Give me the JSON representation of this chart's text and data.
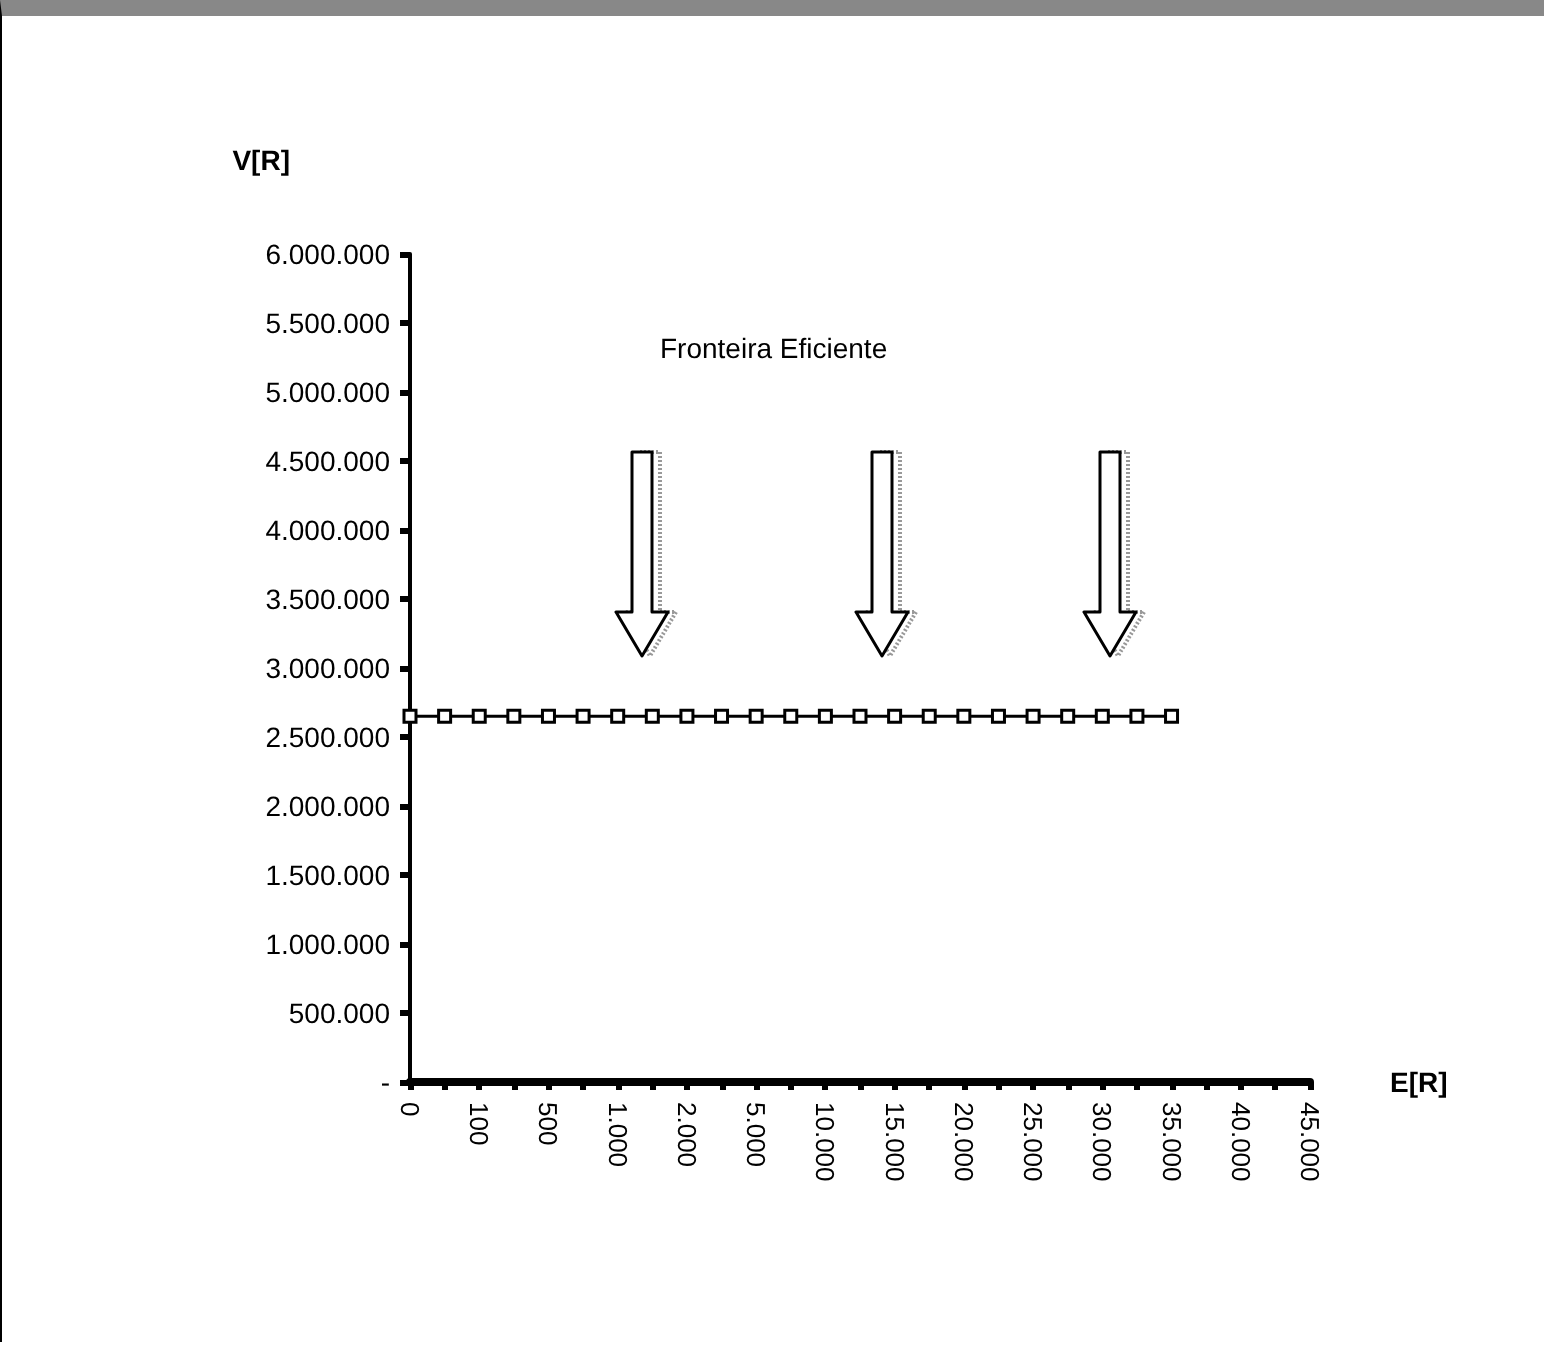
{
  "chart_data": {
    "type": "line",
    "xlabel": "E[R]",
    "ylabel": "V[R]",
    "annotations": [
      "Fronteira Eficiente"
    ],
    "categories": [
      "0",
      null,
      "100",
      null,
      "500",
      null,
      "1.000",
      null,
      "2.000",
      null,
      "5.000",
      null,
      "10.000",
      null,
      "15.000",
      null,
      "20.000",
      null,
      "25.000",
      null,
      "30.000",
      null,
      "35.000",
      null,
      "40.000",
      null,
      "45.000"
    ],
    "series": [
      {
        "color": "#000000",
        "values": [
          2650000,
          2650000,
          2650000,
          2650000,
          2650000,
          2650000,
          2650000,
          2650000,
          2650000,
          2650000,
          2650000,
          2650000,
          2650000,
          2650000,
          2650000,
          2650000,
          2650000,
          2650000,
          2650000,
          2650000,
          2650000,
          2650000,
          2650000,
          null,
          null,
          null,
          null
        ]
      }
    ],
    "ylim": [
      0,
      6000000
    ],
    "yticks": [
      {
        "value": 0,
        "label": "-"
      },
      {
        "value": 500000,
        "label": "500.000"
      },
      {
        "value": 1000000,
        "label": "1.000.000"
      },
      {
        "value": 1500000,
        "label": "1.500.000"
      },
      {
        "value": 2000000,
        "label": "2.000.000"
      },
      {
        "value": 2500000,
        "label": "2.500.000"
      },
      {
        "value": 3000000,
        "label": "3.000.000"
      },
      {
        "value": 3500000,
        "label": "3.500.000"
      },
      {
        "value": 4000000,
        "label": "4.000.000"
      },
      {
        "value": 4500000,
        "label": "4.500.000"
      },
      {
        "value": 5000000,
        "label": "5.000.000"
      },
      {
        "value": 5500000,
        "label": "5.500.000"
      },
      {
        "value": 6000000,
        "label": "6.000.000"
      }
    ],
    "grid": false,
    "marker": "square",
    "line_style": "solid"
  }
}
